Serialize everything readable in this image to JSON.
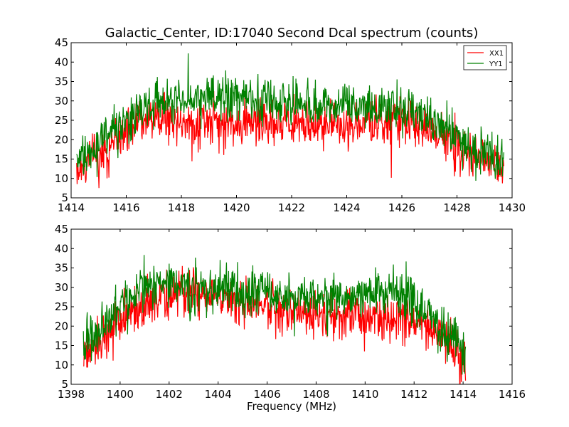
{
  "chart_data": [
    {
      "type": "line",
      "title": "Galactic_Center, ID:17040 Second Dcal spectrum (counts)",
      "xlabel": "",
      "ylabel": "",
      "xlim": [
        1414,
        1430
      ],
      "ylim": [
        5,
        45
      ],
      "xticks": [
        1414,
        1416,
        1418,
        1420,
        1422,
        1424,
        1426,
        1428,
        1430
      ],
      "yticks": [
        5,
        10,
        15,
        20,
        25,
        30,
        35,
        40,
        45
      ],
      "legend_position": "top-right",
      "noise_amplitude": 5,
      "series": [
        {
          "name": "XX1",
          "color": "#ff0000",
          "x": [
            1414.2,
            1415.0,
            1415.5,
            1416.0,
            1416.5,
            1417.0,
            1418.0,
            1419.0,
            1420.0,
            1421.0,
            1422.0,
            1423.0,
            1424.0,
            1425.0,
            1426.0,
            1426.5,
            1427.0,
            1427.5,
            1428.0,
            1428.5,
            1429.0,
            1429.7
          ],
          "y": [
            13,
            16,
            19,
            22,
            25,
            26,
            25,
            24,
            24,
            24,
            24,
            24,
            24,
            24,
            25,
            24,
            23,
            21,
            19,
            17,
            14,
            13
          ]
        },
        {
          "name": "YY1",
          "color": "#008000",
          "x": [
            1414.2,
            1415.0,
            1415.5,
            1416.0,
            1416.5,
            1417.0,
            1418.0,
            1419.0,
            1420.0,
            1421.0,
            1422.0,
            1423.0,
            1424.0,
            1425.0,
            1426.0,
            1426.5,
            1427.0,
            1427.5,
            1428.0,
            1428.5,
            1429.0,
            1429.7
          ],
          "y": [
            15,
            18,
            22,
            25,
            28,
            30,
            30,
            31,
            31,
            30,
            30,
            28,
            29,
            29,
            28,
            27,
            26,
            24,
            21,
            18,
            16,
            14
          ]
        }
      ]
    },
    {
      "type": "line",
      "title": "",
      "xlabel": "Frequency (MHz)",
      "ylabel": "",
      "xlim": [
        1398,
        1416
      ],
      "ylim": [
        5,
        45
      ],
      "xticks": [
        1398,
        1400,
        1402,
        1404,
        1406,
        1408,
        1410,
        1412,
        1414,
        1416
      ],
      "yticks": [
        5,
        10,
        15,
        20,
        25,
        30,
        35,
        40,
        45
      ],
      "noise_amplitude": 5,
      "series": [
        {
          "name": "XX1",
          "color": "#ff0000",
          "x": [
            1398.5,
            1399.0,
            1399.5,
            1400.0,
            1400.5,
            1401.0,
            1402.0,
            1403.0,
            1404.0,
            1405.0,
            1406.0,
            1407.0,
            1408.0,
            1409.0,
            1410.0,
            1411.0,
            1411.5,
            1412.0,
            1412.5,
            1413.0,
            1413.5,
            1414.1
          ],
          "y": [
            13,
            15,
            18,
            21,
            24,
            26,
            28,
            28,
            28,
            26,
            25,
            24,
            23,
            23,
            23,
            22,
            22,
            21,
            20,
            18,
            15,
            12
          ]
        },
        {
          "name": "YY1",
          "color": "#008000",
          "x": [
            1398.5,
            1399.0,
            1399.5,
            1400.0,
            1400.5,
            1401.0,
            1402.0,
            1403.0,
            1404.0,
            1405.0,
            1406.0,
            1407.0,
            1408.0,
            1409.0,
            1410.0,
            1411.0,
            1411.5,
            1412.0,
            1412.5,
            1413.0,
            1413.5,
            1414.1
          ],
          "y": [
            16,
            18,
            21,
            25,
            28,
            30,
            31,
            30,
            30,
            29,
            28,
            27,
            28,
            28,
            28,
            29,
            28,
            26,
            24,
            21,
            17,
            13
          ]
        }
      ]
    }
  ]
}
